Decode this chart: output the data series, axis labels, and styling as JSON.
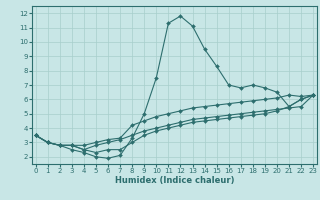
{
  "xlabel": "Humidex (Indice chaleur)",
  "xlim": [
    -0.3,
    23.3
  ],
  "ylim": [
    1.5,
    12.5
  ],
  "xticks": [
    0,
    1,
    2,
    3,
    4,
    5,
    6,
    7,
    8,
    9,
    10,
    11,
    12,
    13,
    14,
    15,
    16,
    17,
    18,
    19,
    20,
    21,
    22,
    23
  ],
  "yticks": [
    2,
    3,
    4,
    5,
    6,
    7,
    8,
    9,
    10,
    11,
    12
  ],
  "bg_color": "#c8e6e6",
  "line_color": "#2d6e6e",
  "grid_color": "#a8cecc",
  "series": [
    [
      3.5,
      3.0,
      2.8,
      2.5,
      2.3,
      2.0,
      1.9,
      2.1,
      3.3,
      5.0,
      7.5,
      11.3,
      11.8,
      11.1,
      9.5,
      8.3,
      7.0,
      6.8,
      7.0,
      6.8,
      6.5,
      5.5,
      6.0,
      6.3
    ],
    [
      3.5,
      3.0,
      2.8,
      2.8,
      2.8,
      3.0,
      3.2,
      3.3,
      4.2,
      4.5,
      4.8,
      5.0,
      5.2,
      5.4,
      5.5,
      5.6,
      5.7,
      5.8,
      5.9,
      6.0,
      6.1,
      6.3,
      6.2,
      6.3
    ],
    [
      3.5,
      3.0,
      2.8,
      2.8,
      2.5,
      2.8,
      3.0,
      3.2,
      3.5,
      3.8,
      4.0,
      4.2,
      4.4,
      4.6,
      4.7,
      4.8,
      4.9,
      5.0,
      5.1,
      5.2,
      5.3,
      5.4,
      5.5,
      6.3
    ],
    [
      3.5,
      3.0,
      2.8,
      2.8,
      2.5,
      2.3,
      2.5,
      2.5,
      3.0,
      3.5,
      3.8,
      4.0,
      4.2,
      4.4,
      4.5,
      4.6,
      4.7,
      4.8,
      4.9,
      5.0,
      5.2,
      5.5,
      6.0,
      6.3
    ]
  ],
  "marker": "D",
  "markersize": 2.0,
  "linewidth": 0.8,
  "tick_fontsize": 5,
  "xlabel_fontsize": 6
}
